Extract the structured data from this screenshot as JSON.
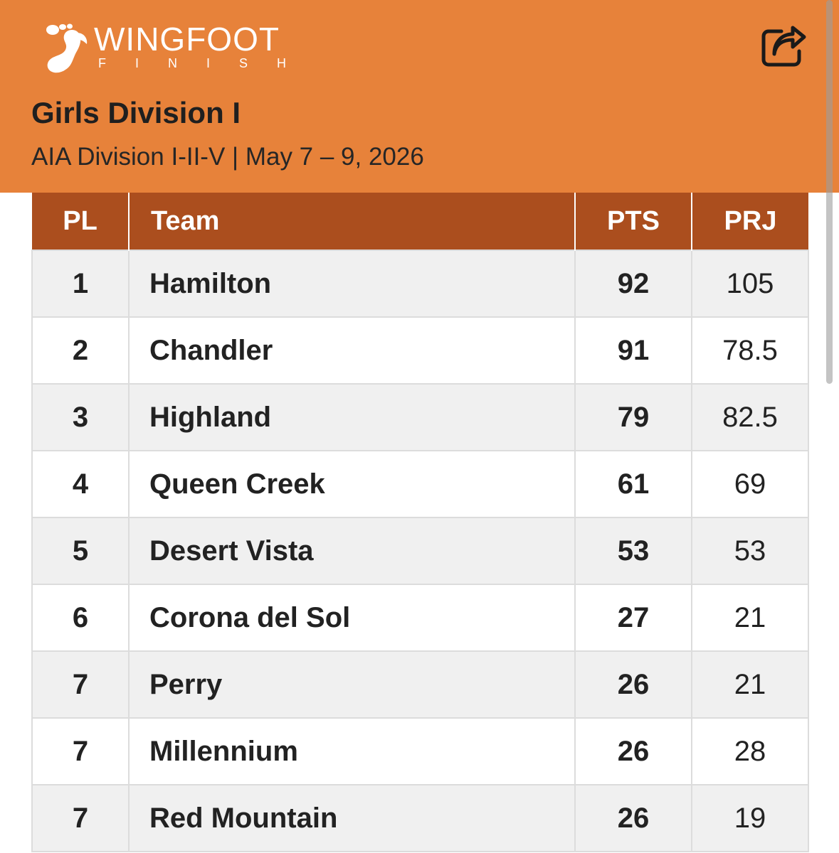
{
  "header": {
    "logo_word": "WINGFOOT",
    "logo_sub": "FINISH",
    "title": "Girls Division I",
    "subtitle": "AIA Division I-II-V | May 7 – 9, 2026",
    "share_icon": "share-icon",
    "background_color": "#E7823A"
  },
  "table": {
    "header_color": "#AB4E1E",
    "columns": [
      "PL",
      "Team",
      "PTS",
      "PRJ"
    ],
    "rows": [
      {
        "pl": "1",
        "team": "Hamilton",
        "pts": "92",
        "prj": "105"
      },
      {
        "pl": "2",
        "team": "Chandler",
        "pts": "91",
        "prj": "78.5"
      },
      {
        "pl": "3",
        "team": "Highland",
        "pts": "79",
        "prj": "82.5"
      },
      {
        "pl": "4",
        "team": "Queen Creek",
        "pts": "61",
        "prj": "69"
      },
      {
        "pl": "5",
        "team": "Desert Vista",
        "pts": "53",
        "prj": "53"
      },
      {
        "pl": "6",
        "team": "Corona del Sol",
        "pts": "27",
        "prj": "21"
      },
      {
        "pl": "7",
        "team": "Perry",
        "pts": "26",
        "prj": "21"
      },
      {
        "pl": "7",
        "team": "Millennium",
        "pts": "26",
        "prj": "28"
      },
      {
        "pl": "7",
        "team": "Red Mountain",
        "pts": "26",
        "prj": "19"
      }
    ]
  }
}
